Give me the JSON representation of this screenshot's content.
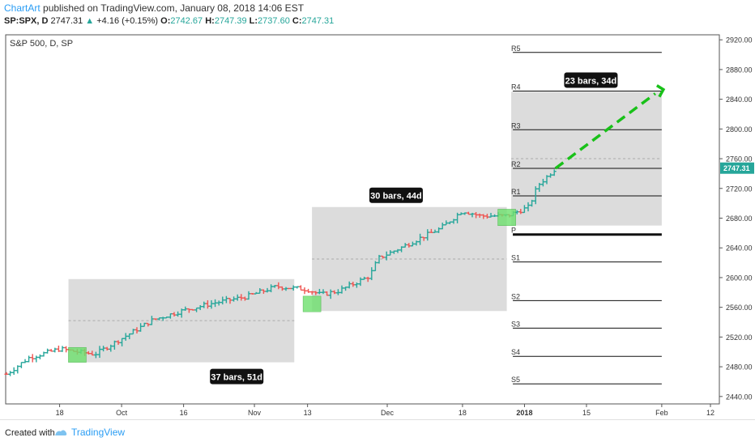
{
  "header": {
    "brand": "ChartArt",
    "published": "published on TradingView.com, January 08, 2018 14:06 EST",
    "symbol": "SP:SPX, D",
    "last": "2747.31",
    "change": "+4.16 (+0.15%)",
    "o_label": "O:",
    "o_val": "2742.67",
    "h_label": "H:",
    "h_val": "2747.39",
    "l_label": "L:",
    "l_val": "2737.60",
    "c_label": "C:",
    "c_val": "2747.31"
  },
  "footer": {
    "created": "Created with",
    "brand": "TradingView"
  },
  "colors": {
    "up": "#26a69a",
    "down": "#ef5350",
    "box": "#d6d6d6",
    "highlight": "#6ee06e",
    "target": "#19c119",
    "price_badge": "#26a69a"
  },
  "chart_data": {
    "type": "candlestick",
    "title": "S&P 500, D, SP",
    "ylim": [
      2430,
      2930
    ],
    "y_ticks": [
      2440,
      2480,
      2520,
      2560,
      2600,
      2640,
      2680,
      2720,
      2760,
      2800,
      2840,
      2880,
      2920
    ],
    "y_tick_labels": [
      "2440.00",
      "2480.00",
      "2520.00",
      "2560.00",
      "2600.00",
      "2640.00",
      "2680.00",
      "2720.00",
      "2760.00",
      "2800.00",
      "2840.00",
      "2880.00",
      "2920.00"
    ],
    "x_tick_labels": [
      "18",
      "Oct",
      "16",
      "Nov",
      "13",
      "Dec",
      "18",
      "2018",
      "15",
      "Feb",
      "12"
    ],
    "last_price_label": "2747.31",
    "path_points": [
      {
        "date": "2017-09-06",
        "close": 2470
      },
      {
        "date": "2017-09-11",
        "close": 2492
      },
      {
        "date": "2017-09-18",
        "close": 2504
      },
      {
        "date": "2017-09-22",
        "close": 2500
      },
      {
        "date": "2017-09-26",
        "close": 2497
      },
      {
        "date": "2017-10-02",
        "close": 2518
      },
      {
        "date": "2017-10-09",
        "close": 2543
      },
      {
        "date": "2017-10-16",
        "close": 2556
      },
      {
        "date": "2017-10-23",
        "close": 2566
      },
      {
        "date": "2017-10-30",
        "close": 2574
      },
      {
        "date": "2017-11-06",
        "close": 2588
      },
      {
        "date": "2017-11-13",
        "close": 2584
      },
      {
        "date": "2017-11-16",
        "close": 2577
      },
      {
        "date": "2017-11-20",
        "close": 2582
      },
      {
        "date": "2017-11-27",
        "close": 2602
      },
      {
        "date": "2017-11-29",
        "close": 2626
      },
      {
        "date": "2017-12-04",
        "close": 2640
      },
      {
        "date": "2017-12-08",
        "close": 2652
      },
      {
        "date": "2017-12-13",
        "close": 2666
      },
      {
        "date": "2017-12-18",
        "close": 2690
      },
      {
        "date": "2017-12-22",
        "close": 2683
      },
      {
        "date": "2017-12-28",
        "close": 2683
      },
      {
        "date": "2018-01-02",
        "close": 2695
      },
      {
        "date": "2018-01-04",
        "close": 2724
      },
      {
        "date": "2018-01-08",
        "close": 2747
      }
    ],
    "boxes": [
      {
        "label": "37 bars, 51d",
        "date_from": "2017-09-20",
        "date_to": "2017-11-10",
        "low": 2486,
        "high": 2598
      },
      {
        "label": "30 bars, 44d",
        "date_from": "2017-11-14",
        "date_to": "2017-12-28",
        "low": 2555,
        "high": 2695
      },
      {
        "label": "23 bars, 34d",
        "date_from": "2017-12-29",
        "date_to": "2018-02-01",
        "low": 2670,
        "high": 2850
      }
    ],
    "highlights": [
      {
        "date": "2017-09-22",
        "low": 2486,
        "high": 2506
      },
      {
        "date": "2017-11-14",
        "low": 2554,
        "high": 2575
      },
      {
        "date": "2017-12-28",
        "low": 2670,
        "high": 2692
      }
    ],
    "pivots": [
      {
        "label": "R5",
        "value": 2903
      },
      {
        "label": "R4",
        "value": 2851
      },
      {
        "label": "R3",
        "value": 2799
      },
      {
        "label": "R2",
        "value": 2747
      },
      {
        "label": "R1",
        "value": 2710
      },
      {
        "label": "P",
        "value": 2658
      },
      {
        "label": "S1",
        "value": 2621
      },
      {
        "label": "S2",
        "value": 2569
      },
      {
        "label": "S3",
        "value": 2532
      },
      {
        "label": "S4",
        "value": 2494
      },
      {
        "label": "S5",
        "value": 2457
      }
    ],
    "projection": {
      "from_date": "2018-01-08",
      "from_value": 2747,
      "to_date": "2018-02-01",
      "to_value": 2852
    }
  }
}
